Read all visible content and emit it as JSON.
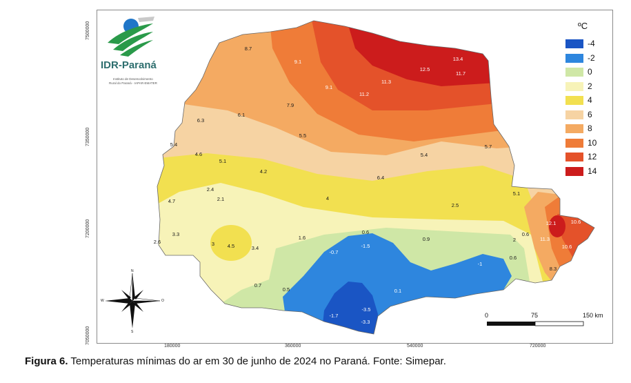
{
  "legend": {
    "title": "ºC",
    "items": [
      {
        "label": "-4",
        "color": "#1a55c4"
      },
      {
        "label": "-2",
        "color": "#2e86de"
      },
      {
        "label": "0",
        "color": "#cfe7a6"
      },
      {
        "label": "2",
        "color": "#f7f3b8"
      },
      {
        "label": "4",
        "color": "#f2e050"
      },
      {
        "label": "6",
        "color": "#f6d3a3"
      },
      {
        "label": "8",
        "color": "#f4aa62"
      },
      {
        "label": "10",
        "color": "#ef7c38"
      },
      {
        "label": "12",
        "color": "#e4522a"
      },
      {
        "label": "14",
        "color": "#cc1c1c"
      }
    ]
  },
  "logo": {
    "name": "IDR-Paraná",
    "sub1": "Instituto de Desenvolvimento",
    "sub2": "Rural do Paraná - IAPAR-EMATER"
  },
  "axes": {
    "y_ticks": [
      "7500000",
      "7350000",
      "7200000",
      "7050000"
    ],
    "x_ticks": [
      "180000",
      "360000",
      "540000",
      "720000"
    ]
  },
  "scale_bar": {
    "labels": [
      "0",
      "75",
      "150 km"
    ]
  },
  "compass": {
    "n": "N",
    "s": "S",
    "e": "O",
    "w": "W"
  },
  "caption": {
    "bold": "Figura 6.",
    "text": " Temperaturas mínimas do ar em 30 de junho de 2024 no Paraná. Fonte: Simepar."
  },
  "stations": [
    {
      "v": "8.7"
    },
    {
      "v": "9.1"
    },
    {
      "v": "13.4"
    },
    {
      "v": "12.5"
    },
    {
      "v": "11.7"
    },
    {
      "v": "11.3"
    },
    {
      "v": "9.1"
    },
    {
      "v": "11.2"
    },
    {
      "v": "7.9"
    },
    {
      "v": "6.3"
    },
    {
      "v": "6.1"
    },
    {
      "v": "5.5"
    },
    {
      "v": "5.4"
    },
    {
      "v": "4.6"
    },
    {
      "v": "5.1"
    },
    {
      "v": "4.2"
    },
    {
      "v": "5.4"
    },
    {
      "v": "5.7"
    },
    {
      "v": "6.4"
    },
    {
      "v": "2.4"
    },
    {
      "v": "2.1"
    },
    {
      "v": "4"
    },
    {
      "v": "4.7"
    },
    {
      "v": "2.5"
    },
    {
      "v": "5.1"
    },
    {
      "v": "3.3"
    },
    {
      "v": "2.6"
    },
    {
      "v": "3"
    },
    {
      "v": "4.5"
    },
    {
      "v": "3.4"
    },
    {
      "v": "1.6"
    },
    {
      "v": "0.6"
    },
    {
      "v": "-1.5"
    },
    {
      "v": "-0.7"
    },
    {
      "v": "0.9"
    },
    {
      "v": "2"
    },
    {
      "v": "0.6"
    },
    {
      "v": "12.1"
    },
    {
      "v": "10.6"
    },
    {
      "v": "11.3"
    },
    {
      "v": "10.6"
    },
    {
      "v": "-1"
    },
    {
      "v": "0.6"
    },
    {
      "v": "8.3"
    },
    {
      "v": "0.7"
    },
    {
      "v": "0.5"
    },
    {
      "v": "0.1"
    },
    {
      "v": "-1.7"
    },
    {
      "v": "-3.5"
    },
    {
      "v": "-3.3"
    }
  ]
}
